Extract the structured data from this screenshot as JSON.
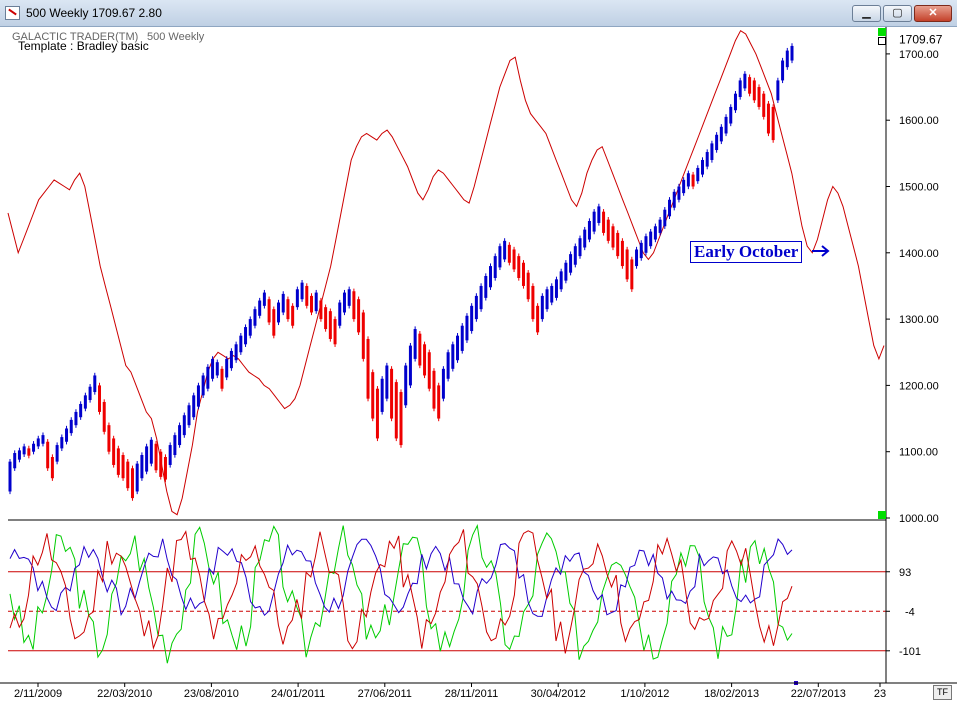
{
  "window": {
    "title": "500 Weekly 1709.67    2.80",
    "buttons": {
      "minimize": "▁",
      "maximize": "▢",
      "close": "✕"
    }
  },
  "header": {
    "brand": "GALACTIC TRADER(TM)",
    "symbol": "500 Weekly",
    "template": "Template : Bradley basic",
    "last_price": "1709.67"
  },
  "annotation": {
    "text": "Early October",
    "color": "#0000cc"
  },
  "footer": {
    "tf_button": "TF"
  },
  "colors": {
    "up": "#0000cc",
    "down": "#ee0000",
    "bradley": "#cc0000",
    "osc_green": "#00cc00",
    "osc_blue": "#2200cc",
    "osc_red": "#cc0000"
  },
  "chart_data": [
    {
      "type": "candlestick",
      "title": "",
      "y_ticks": [
        "1000.00",
        "1100.00",
        "1200.00",
        "1300.00",
        "1400.00",
        "1500.00",
        "1600.00",
        "1700.00"
      ],
      "ylim": [
        1000,
        1750
      ],
      "x_ticks": [
        "2/11/2009",
        "22/03/2010",
        "23/08/2010",
        "24/01/2011",
        "27/06/2011",
        "28/11/2011",
        "30/04/2012",
        "1/10/2012",
        "18/02/2013",
        "22/07/2013",
        "23"
      ],
      "price_series": [
        [
          1085,
          1040
        ],
        [
          1098,
          1075
        ],
        [
          1102,
          1088
        ],
        [
          1108,
          1096
        ],
        [
          1105,
          1094
        ],
        [
          1112,
          1100
        ],
        [
          1120,
          1108
        ],
        [
          1125,
          1112
        ],
        [
          1115,
          1075
        ],
        [
          1092,
          1060
        ],
        [
          1110,
          1085
        ],
        [
          1122,
          1105
        ],
        [
          1135,
          1115
        ],
        [
          1148,
          1128
        ],
        [
          1160,
          1140
        ],
        [
          1172,
          1152
        ],
        [
          1185,
          1165
        ],
        [
          1198,
          1178
        ],
        [
          1215,
          1190
        ],
        [
          1200,
          1160
        ],
        [
          1175,
          1130
        ],
        [
          1140,
          1100
        ],
        [
          1120,
          1080
        ],
        [
          1105,
          1065
        ],
        [
          1095,
          1060
        ],
        [
          1085,
          1045
        ],
        [
          1075,
          1030
        ],
        [
          1082,
          1040
        ],
        [
          1095,
          1060
        ],
        [
          1108,
          1070
        ],
        [
          1118,
          1082
        ],
        [
          1112,
          1072
        ],
        [
          1100,
          1062
        ],
        [
          1092,
          1058
        ],
        [
          1110,
          1080
        ],
        [
          1125,
          1095
        ],
        [
          1140,
          1110
        ],
        [
          1155,
          1125
        ],
        [
          1170,
          1140
        ],
        [
          1185,
          1152
        ],
        [
          1200,
          1168
        ],
        [
          1215,
          1185
        ],
        [
          1228,
          1195
        ],
        [
          1240,
          1210
        ],
        [
          1235,
          1215
        ],
        [
          1225,
          1195
        ],
        [
          1240,
          1212
        ],
        [
          1252,
          1226
        ],
        [
          1262,
          1238
        ],
        [
          1275,
          1250
        ],
        [
          1288,
          1262
        ],
        [
          1300,
          1275
        ],
        [
          1315,
          1290
        ],
        [
          1328,
          1305
        ],
        [
          1340,
          1320
        ],
        [
          1330,
          1295
        ],
        [
          1315,
          1275
        ],
        [
          1325,
          1295
        ],
        [
          1338,
          1310
        ],
        [
          1330,
          1300
        ],
        [
          1320,
          1290
        ],
        [
          1345,
          1318
        ],
        [
          1355,
          1330
        ],
        [
          1350,
          1320
        ],
        [
          1335,
          1310
        ],
        [
          1340,
          1312
        ],
        [
          1328,
          1300
        ],
        [
          1318,
          1285
        ],
        [
          1312,
          1270
        ],
        [
          1300,
          1262
        ],
        [
          1325,
          1290
        ],
        [
          1340,
          1310
        ],
        [
          1345,
          1320
        ],
        [
          1342,
          1300
        ],
        [
          1330,
          1280
        ],
        [
          1310,
          1240
        ],
        [
          1270,
          1180
        ],
        [
          1220,
          1150
        ],
        [
          1195,
          1120
        ],
        [
          1210,
          1160
        ],
        [
          1230,
          1180
        ],
        [
          1225,
          1150
        ],
        [
          1205,
          1120
        ],
        [
          1190,
          1110
        ],
        [
          1230,
          1170
        ],
        [
          1260,
          1200
        ],
        [
          1285,
          1240
        ],
        [
          1278,
          1230
        ],
        [
          1262,
          1215
        ],
        [
          1250,
          1195
        ],
        [
          1222,
          1165
        ],
        [
          1200,
          1150
        ],
        [
          1225,
          1180
        ],
        [
          1250,
          1210
        ],
        [
          1262,
          1225
        ],
        [
          1275,
          1238
        ],
        [
          1290,
          1252
        ],
        [
          1305,
          1268
        ],
        [
          1320,
          1282
        ],
        [
          1335,
          1300
        ],
        [
          1350,
          1315
        ],
        [
          1365,
          1332
        ],
        [
          1380,
          1348
        ],
        [
          1395,
          1362
        ],
        [
          1410,
          1378
        ],
        [
          1418,
          1390
        ],
        [
          1412,
          1385
        ],
        [
          1405,
          1375
        ],
        [
          1395,
          1362
        ],
        [
          1385,
          1350
        ],
        [
          1370,
          1330
        ],
        [
          1350,
          1300
        ],
        [
          1320,
          1280
        ],
        [
          1335,
          1300
        ],
        [
          1345,
          1315
        ],
        [
          1350,
          1325
        ],
        [
          1360,
          1332
        ],
        [
          1372,
          1345
        ],
        [
          1385,
          1358
        ],
        [
          1398,
          1370
        ],
        [
          1410,
          1382
        ],
        [
          1422,
          1395
        ],
        [
          1435,
          1408
        ],
        [
          1448,
          1420
        ],
        [
          1462,
          1432
        ],
        [
          1470,
          1445
        ],
        [
          1462,
          1430
        ],
        [
          1450,
          1418
        ],
        [
          1440,
          1408
        ],
        [
          1430,
          1395
        ],
        [
          1418,
          1380
        ],
        [
          1405,
          1360
        ],
        [
          1390,
          1345
        ],
        [
          1405,
          1380
        ],
        [
          1415,
          1392
        ],
        [
          1425,
          1400
        ],
        [
          1432,
          1410
        ],
        [
          1440,
          1420
        ],
        [
          1450,
          1430
        ],
        [
          1465,
          1440
        ],
        [
          1480,
          1455
        ],
        [
          1492,
          1468
        ],
        [
          1500,
          1480
        ],
        [
          1510,
          1490
        ],
        [
          1520,
          1500
        ],
        [
          1518,
          1500
        ],
        [
          1528,
          1508
        ],
        [
          1540,
          1518
        ],
        [
          1552,
          1530
        ],
        [
          1565,
          1540
        ],
        [
          1578,
          1555
        ],
        [
          1590,
          1568
        ],
        [
          1605,
          1580
        ],
        [
          1620,
          1595
        ],
        [
          1640,
          1615
        ],
        [
          1660,
          1635
        ],
        [
          1670,
          1648
        ],
        [
          1665,
          1640
        ],
        [
          1660,
          1630
        ],
        [
          1650,
          1620
        ],
        [
          1640,
          1605
        ],
        [
          1625,
          1580
        ],
        [
          1620,
          1570
        ],
        [
          1660,
          1630
        ],
        [
          1690,
          1660
        ],
        [
          1705,
          1680
        ],
        [
          1712,
          1690
        ]
      ],
      "bradley_line": [
        1460,
        1430,
        1400,
        1420,
        1440,
        1460,
        1480,
        1490,
        1500,
        1510,
        1505,
        1500,
        1495,
        1510,
        1520,
        1500,
        1460,
        1420,
        1380,
        1350,
        1320,
        1290,
        1260,
        1230,
        1220,
        1200,
        1180,
        1160,
        1150,
        1120,
        1080,
        1040,
        1010,
        1005,
        1030,
        1070,
        1110,
        1160,
        1190,
        1220,
        1240,
        1250,
        1245,
        1240,
        1245,
        1240,
        1230,
        1220,
        1215,
        1210,
        1200,
        1195,
        1185,
        1175,
        1165,
        1170,
        1180,
        1200,
        1230,
        1260,
        1290,
        1320,
        1350,
        1380,
        1420,
        1460,
        1500,
        1540,
        1560,
        1575,
        1580,
        1575,
        1570,
        1580,
        1585,
        1575,
        1560,
        1545,
        1530,
        1510,
        1490,
        1480,
        1495,
        1515,
        1525,
        1520,
        1510,
        1500,
        1490,
        1480,
        1475,
        1500,
        1530,
        1560,
        1590,
        1620,
        1650,
        1670,
        1690,
        1695,
        1660,
        1630,
        1610,
        1600,
        1590,
        1580,
        1560,
        1540,
        1520,
        1500,
        1480,
        1470,
        1490,
        1520,
        1540,
        1555,
        1560,
        1540,
        1520,
        1500,
        1480,
        1460,
        1440,
        1420,
        1400,
        1390,
        1400,
        1420,
        1440,
        1460,
        1480,
        1500,
        1520,
        1540,
        1560,
        1580,
        1600,
        1620,
        1640,
        1660,
        1680,
        1700,
        1720,
        1735,
        1730,
        1715,
        1700,
        1680,
        1660,
        1640,
        1610,
        1580,
        1550,
        1520,
        1480,
        1440,
        1410,
        1400,
        1420,
        1450,
        1480,
        1500,
        1490,
        1470,
        1440,
        1410,
        1380,
        1340,
        1300,
        1260,
        1240,
        1260
      ]
    },
    {
      "type": "line",
      "title": "",
      "y_ticks": [
        "93",
        "-4",
        "-101"
      ],
      "ylim": [
        -180,
        220
      ],
      "series": [
        {
          "name": "",
          "color": "#00cc00"
        },
        {
          "name": "",
          "color": "#2200cc"
        },
        {
          "name": "",
          "color": "#cc0000"
        }
      ]
    }
  ]
}
